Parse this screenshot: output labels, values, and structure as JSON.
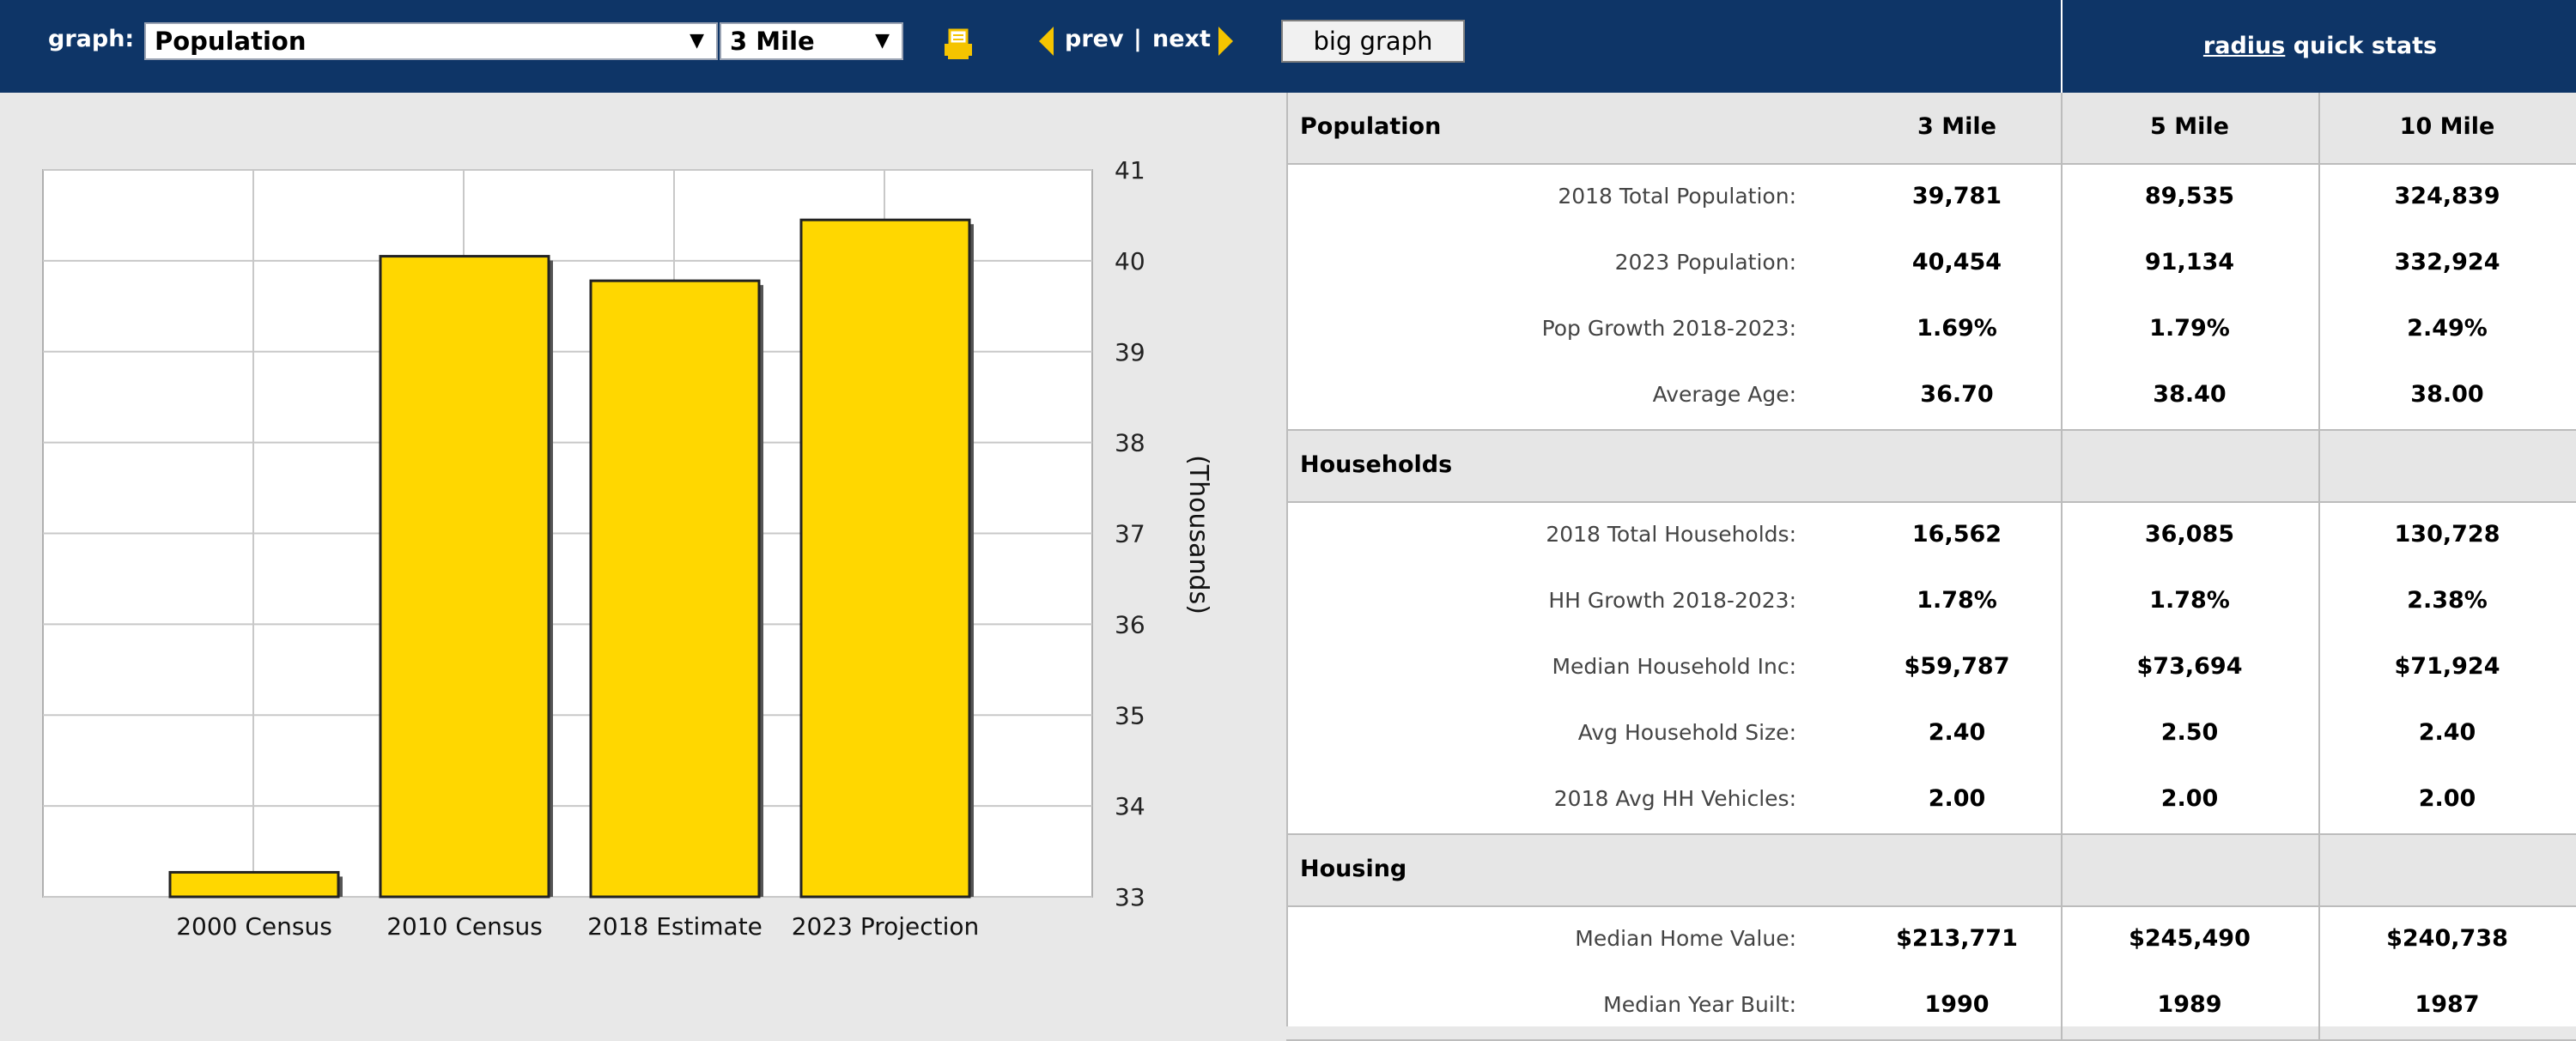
{
  "toolbar": {
    "graph_label": "graph:",
    "graph_select": "Population",
    "radius_select": "3 Mile",
    "prev": "prev",
    "separator": "|",
    "next": "next",
    "big_graph": "big graph",
    "quick_stats_link": "radius",
    "quick_stats_rest": " quick stats"
  },
  "colors": {
    "header": "#0e3567",
    "bar": "#ffd700",
    "nav_arrow": "#f5c400"
  },
  "chart_data": {
    "type": "bar",
    "categories": [
      "2000 Census",
      "2010 Census",
      "2018 Estimate",
      "2023 Projection"
    ],
    "values": [
      33.27,
      40.05,
      39.78,
      40.45
    ],
    "ylabel": "(Thousands)",
    "ylim": [
      33,
      41
    ],
    "yticks": [
      "33",
      "34",
      "35",
      "36",
      "37",
      "38",
      "39",
      "40",
      "41"
    ],
    "grid": true,
    "y_axis_side": "right"
  },
  "table": {
    "columns": [
      "3 Mile",
      "5 Mile",
      "10 Mile"
    ],
    "sections": [
      {
        "name": "Population",
        "rows": [
          {
            "label": "2018 Total Population:",
            "values": [
              "39,781",
              "89,535",
              "324,839"
            ]
          },
          {
            "label": "2023 Population:",
            "values": [
              "40,454",
              "91,134",
              "332,924"
            ]
          },
          {
            "label": "Pop Growth 2018-2023:",
            "values": [
              "1.69%",
              "1.79%",
              "2.49%"
            ]
          },
          {
            "label": "Average Age:",
            "values": [
              "36.70",
              "38.40",
              "38.00"
            ]
          }
        ]
      },
      {
        "name": "Households",
        "rows": [
          {
            "label": "2018 Total Households:",
            "values": [
              "16,562",
              "36,085",
              "130,728"
            ]
          },
          {
            "label": "HH Growth 2018-2023:",
            "values": [
              "1.78%",
              "1.78%",
              "2.38%"
            ]
          },
          {
            "label": "Median Household Inc:",
            "values": [
              "$59,787",
              "$73,694",
              "$71,924"
            ]
          },
          {
            "label": "Avg Household Size:",
            "values": [
              "2.40",
              "2.50",
              "2.40"
            ]
          },
          {
            "label": "2018 Avg HH Vehicles:",
            "values": [
              "2.00",
              "2.00",
              "2.00"
            ]
          }
        ]
      },
      {
        "name": "Housing",
        "rows": [
          {
            "label": "Median Home Value:",
            "values": [
              "$213,771",
              "$245,490",
              "$240,738"
            ]
          },
          {
            "label": "Median Year Built:",
            "values": [
              "1990",
              "1989",
              "1987"
            ]
          }
        ]
      }
    ]
  }
}
